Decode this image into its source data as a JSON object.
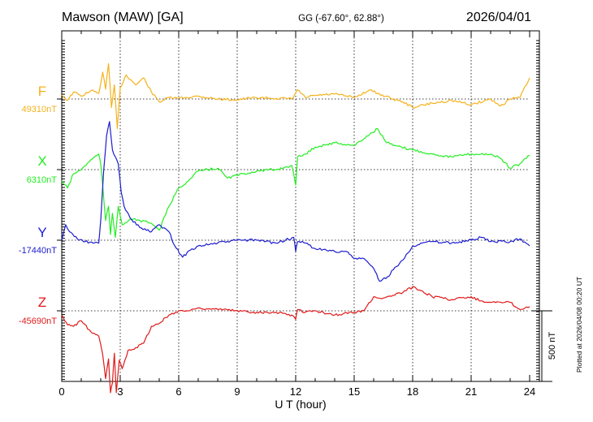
{
  "header": {
    "station": "Mawson (MAW)  [GA]",
    "coords": "GG (-67.60°,  62.88°)",
    "date": "2026/04/01"
  },
  "footer": {
    "plotted": "Plotted at 2026/04/08 00:20 UT"
  },
  "chart_data": {
    "type": "line",
    "xlabel": "U T (hour)",
    "xlim": [
      0,
      24
    ],
    "x_ticks": [
      "0",
      "3",
      "6",
      "9",
      "12",
      "15",
      "18",
      "21",
      "24"
    ],
    "scale_bar_label": "500 nT",
    "scale_bar_value_nT": 500,
    "grid": true,
    "series": [
      {
        "name": "F",
        "baseline_label": "49310nT",
        "baseline_nT": 49310,
        "color": "#f5b21c",
        "x": [
          0,
          0.3,
          0.6,
          1.0,
          1.5,
          1.9,
          2.1,
          2.25,
          2.4,
          2.55,
          2.7,
          2.85,
          3.0,
          3.3,
          3.8,
          4.2,
          4.6,
          5.0,
          5.5,
          6.0,
          7.0,
          8.0,
          9.0,
          10.0,
          11.0,
          11.8,
          12.1,
          12.5,
          13.0,
          14.0,
          15.0,
          15.8,
          16.2,
          17.0,
          17.5,
          18.0,
          19.0,
          20.0,
          21.0,
          22.0,
          22.5,
          23.0,
          23.5,
          24.0
        ],
        "y": [
          49340,
          49300,
          49360,
          49330,
          49370,
          49350,
          49500,
          49380,
          49560,
          49250,
          49410,
          49100,
          49390,
          49480,
          49410,
          49460,
          49360,
          49290,
          49320,
          49315,
          49330,
          49310,
          49305,
          49320,
          49315,
          49310,
          49375,
          49320,
          49335,
          49345,
          49320,
          49375,
          49350,
          49310,
          49290,
          49250,
          49280,
          49300,
          49270,
          49310,
          49260,
          49310,
          49320,
          49460
        ]
      },
      {
        "name": "X",
        "baseline_label": "6310nT",
        "baseline_nT": 6310,
        "color": "#22ee22",
        "x": [
          0,
          0.3,
          0.6,
          1.0,
          1.5,
          1.9,
          2.0,
          2.1,
          2.25,
          2.4,
          2.5,
          2.6,
          2.75,
          2.9,
          3.1,
          3.5,
          4.0,
          4.6,
          5.0,
          5.5,
          6.0,
          6.5,
          7.0,
          8.0,
          8.5,
          9.0,
          10.0,
          11.0,
          11.8,
          12.0,
          12.1,
          12.5,
          13.0,
          14.0,
          15.0,
          15.8,
          16.2,
          16.6,
          17.0,
          18.0,
          19.0,
          20.0,
          21.0,
          22.0,
          22.5,
          23.0,
          23.5,
          24.0
        ],
        "y": [
          6230,
          6180,
          6280,
          6310,
          6380,
          6420,
          6350,
          6200,
          5950,
          6050,
          5850,
          6000,
          5830,
          6050,
          5920,
          5960,
          5950,
          5930,
          5880,
          6050,
          6180,
          6230,
          6300,
          6320,
          6250,
          6270,
          6300,
          6310,
          6340,
          6200,
          6400,
          6420,
          6470,
          6500,
          6480,
          6560,
          6600,
          6510,
          6480,
          6450,
          6420,
          6400,
          6420,
          6420,
          6390,
          6320,
          6350,
          6410
        ]
      },
      {
        "name": "Y",
        "baseline_label": "-17440nT",
        "baseline_nT": -17440,
        "color": "#1c1cd0",
        "x": [
          0,
          0.2,
          0.4,
          0.8,
          1.2,
          1.6,
          1.9,
          2.0,
          2.15,
          2.3,
          2.45,
          2.6,
          2.75,
          2.9,
          3.05,
          3.2,
          3.5,
          4.0,
          4.6,
          5.0,
          5.5,
          5.8,
          6.2,
          6.6,
          7.0,
          8.0,
          9.0,
          10.0,
          11.0,
          11.9,
          12.0,
          12.1,
          12.5,
          13.0,
          14.0,
          14.6,
          15.0,
          15.5,
          16.0,
          16.3,
          16.7,
          17.0,
          17.5,
          18.0,
          18.5,
          19.0,
          20.0,
          21.0,
          21.5,
          22.0,
          23.0,
          23.5,
          24.0
        ],
        "y": [
          -17440,
          -17330,
          -17380,
          -17430,
          -17450,
          -17460,
          -17460,
          -17300,
          -16950,
          -16700,
          -16600,
          -16800,
          -16850,
          -16900,
          -17100,
          -17200,
          -17280,
          -17350,
          -17380,
          -17330,
          -17380,
          -17480,
          -17560,
          -17510,
          -17480,
          -17460,
          -17440,
          -17440,
          -17460,
          -17420,
          -17520,
          -17450,
          -17460,
          -17500,
          -17520,
          -17520,
          -17570,
          -17570,
          -17640,
          -17730,
          -17700,
          -17650,
          -17580,
          -17480,
          -17460,
          -17450,
          -17460,
          -17440,
          -17420,
          -17450,
          -17450,
          -17430,
          -17480
        ]
      },
      {
        "name": "Z",
        "baseline_label": "-45690nT",
        "baseline_nT": -45690,
        "color": "#e01a1a",
        "x": [
          0,
          0.3,
          0.6,
          1.0,
          1.5,
          1.9,
          2.1,
          2.25,
          2.4,
          2.5,
          2.6,
          2.7,
          2.8,
          2.95,
          3.1,
          3.4,
          3.8,
          4.2,
          4.6,
          5.0,
          5.5,
          6.0,
          6.5,
          7.0,
          8.0,
          9.0,
          10.0,
          11.0,
          11.8,
          12.0,
          12.1,
          12.5,
          13.0,
          14.0,
          15.0,
          15.5,
          16.0,
          16.5,
          17.0,
          17.5,
          18.0,
          18.5,
          19.0,
          20.0,
          21.0,
          21.5,
          22.0,
          23.0,
          23.5,
          24.0
        ],
        "y": [
          -45720,
          -45790,
          -45800,
          -45760,
          -45840,
          -45870,
          -46000,
          -46170,
          -46030,
          -46270,
          -46200,
          -45990,
          -46270,
          -46040,
          -46100,
          -45970,
          -45950,
          -45920,
          -45800,
          -45780,
          -45720,
          -45690,
          -45690,
          -45670,
          -45680,
          -45690,
          -45700,
          -45700,
          -45720,
          -45750,
          -45680,
          -45700,
          -45690,
          -45720,
          -45700,
          -45690,
          -45590,
          -45600,
          -45580,
          -45560,
          -45520,
          -45550,
          -45590,
          -45610,
          -45590,
          -45620,
          -45630,
          -45630,
          -45680,
          -45660
        ]
      }
    ]
  }
}
